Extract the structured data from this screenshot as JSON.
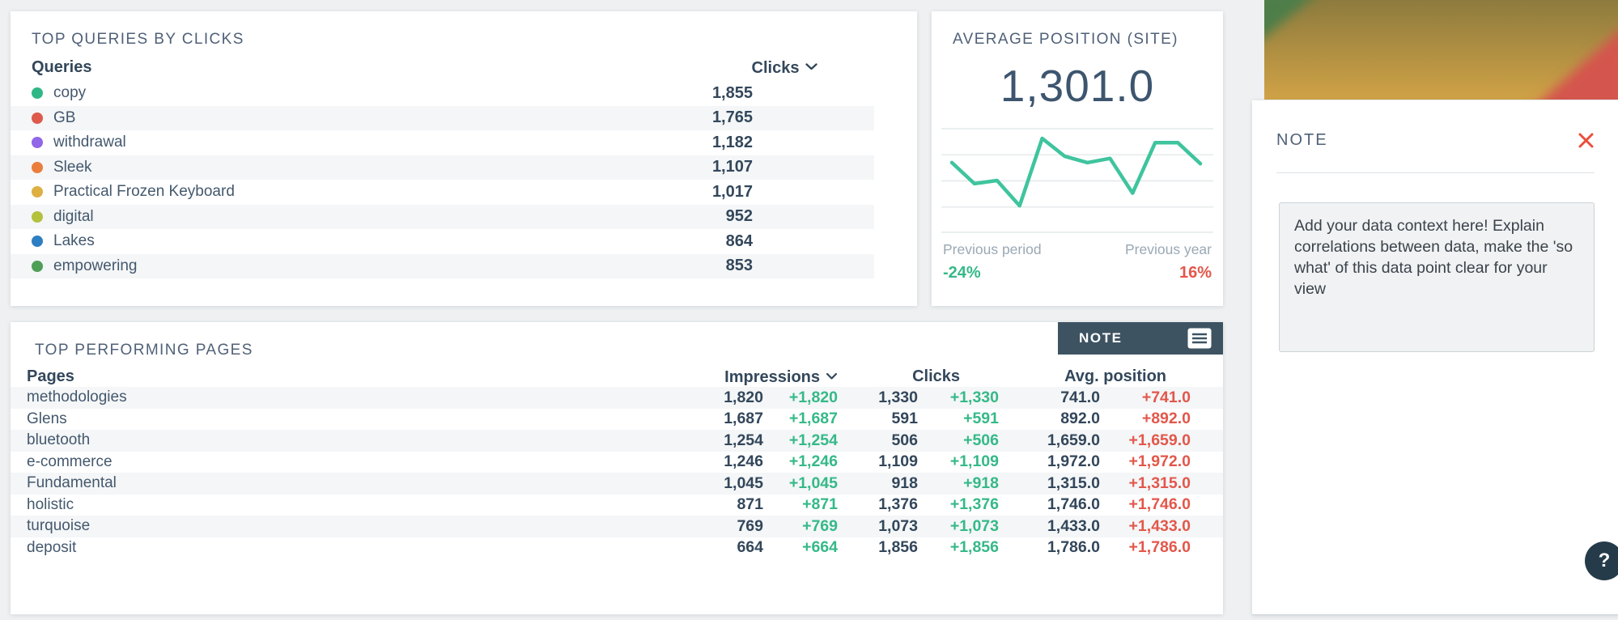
{
  "colors": {
    "page-bg": "#eef0f1",
    "slate": "#33475b",
    "title": "#506178",
    "label": "#44586d",
    "muted": "#9aa8b4",
    "green": "#35b988",
    "red": "#e3574b",
    "bar": "#3dbd95",
    "spark": "#3fc49e",
    "grid": "#e4e8ea",
    "stripe": "#f4f6f7",
    "note-btn-bg": "#3d5362",
    "help-bg": "#253b49",
    "divider": "#dde2e6",
    "textarea-bg": "#f0f2f3",
    "textarea-border": "#ccd3d9",
    "banner-gold-1": "#8d7b3e",
    "banner-gold-2": "#d0a246",
    "banner-green": "#4e7e4a",
    "banner-red": "#d4544d"
  },
  "queries_panel": {
    "title": "TOP QUERIES BY CLICKS",
    "column_label": "Queries",
    "value_column_label": "Clicks",
    "max_value": 1855,
    "rows": [
      {
        "label": "copy",
        "dot_color": "#2fb886",
        "clicks": "1,855",
        "value": 1855
      },
      {
        "label": "GB",
        "dot_color": "#dd5a4d",
        "clicks": "1,765",
        "value": 1765
      },
      {
        "label": "withdrawal",
        "dot_color": "#9166e8",
        "clicks": "1,182",
        "value": 1182
      },
      {
        "label": "Sleek",
        "dot_color": "#ea7e3d",
        "clicks": "1,107",
        "value": 1107
      },
      {
        "label": "Practical Frozen Keyboard",
        "dot_color": "#ddb041",
        "clicks": "1,017",
        "value": 1017
      },
      {
        "label": "digital",
        "dot_color": "#b3c13d",
        "clicks": "952",
        "value": 952
      },
      {
        "label": "Lakes",
        "dot_color": "#2e7fc2",
        "clicks": "864",
        "value": 864
      },
      {
        "label": "empowering",
        "dot_color": "#4e9e58",
        "clicks": "853",
        "value": 853
      }
    ]
  },
  "avg_position_panel": {
    "title": "AVERAGE POSITION (SITE)",
    "value": "1,301.0",
    "previous_period_label": "Previous period",
    "previous_period_value": "-24%",
    "previous_year_label": "Previous year",
    "previous_year_value": "16%",
    "sparkline": [
      67,
      47,
      50,
      26,
      90,
      73,
      67,
      71,
      38,
      86,
      86,
      66
    ]
  },
  "pages_panel": {
    "title": "TOP PERFORMING PAGES",
    "note_button_label": "NOTE",
    "columns": {
      "pages": "Pages",
      "impressions": "Impressions",
      "clicks": "Clicks",
      "avg_position": "Avg. position"
    },
    "rows": [
      {
        "page": "methodologies",
        "impressions": "1,820",
        "impressions_delta": "+1,820",
        "clicks": "1,330",
        "clicks_delta": "+1,330",
        "avg_position": "741.0",
        "avg_position_delta": "+741.0"
      },
      {
        "page": "Glens",
        "impressions": "1,687",
        "impressions_delta": "+1,687",
        "clicks": "591",
        "clicks_delta": "+591",
        "avg_position": "892.0",
        "avg_position_delta": "+892.0"
      },
      {
        "page": "bluetooth",
        "impressions": "1,254",
        "impressions_delta": "+1,254",
        "clicks": "506",
        "clicks_delta": "+506",
        "avg_position": "1,659.0",
        "avg_position_delta": "+1,659.0"
      },
      {
        "page": "e-commerce",
        "impressions": "1,246",
        "impressions_delta": "+1,246",
        "clicks": "1,109",
        "clicks_delta": "+1,109",
        "avg_position": "1,972.0",
        "avg_position_delta": "+1,972.0"
      },
      {
        "page": "Fundamental",
        "impressions": "1,045",
        "impressions_delta": "+1,045",
        "clicks": "918",
        "clicks_delta": "+918",
        "avg_position": "1,315.0",
        "avg_position_delta": "+1,315.0"
      },
      {
        "page": "holistic",
        "impressions": "871",
        "impressions_delta": "+871",
        "clicks": "1,376",
        "clicks_delta": "+1,376",
        "avg_position": "1,746.0",
        "avg_position_delta": "+1,746.0"
      },
      {
        "page": "turquoise",
        "impressions": "769",
        "impressions_delta": "+769",
        "clicks": "1,073",
        "clicks_delta": "+1,073",
        "avg_position": "1,433.0",
        "avg_position_delta": "+1,433.0"
      },
      {
        "page": "deposit",
        "impressions": "664",
        "impressions_delta": "+664",
        "clicks": "1,856",
        "clicks_delta": "+1,856",
        "avg_position": "1,786.0",
        "avg_position_delta": "+1,786.0"
      }
    ]
  },
  "note_panel": {
    "title": "NOTE",
    "body": "Add your data context here! Explain correlations between data, make the 'so what' of this data point clear for your view"
  },
  "help_button": {
    "label": "?"
  },
  "chart_data": [
    {
      "type": "bar",
      "title": "TOP QUERIES BY CLICKS",
      "orientation": "horizontal",
      "categories": [
        "copy",
        "GB",
        "withdrawal",
        "Sleek",
        "Practical Frozen Keyboard",
        "digital",
        "Lakes",
        "empowering"
      ],
      "values": [
        1855,
        1765,
        1182,
        1107,
        1017,
        952,
        864,
        853
      ],
      "xlabel": "Clicks",
      "ylabel": "Queries",
      "xlim": [
        0,
        1855
      ],
      "grid": false
    },
    {
      "type": "line",
      "title": "AVERAGE POSITION (SITE)",
      "current_value": 1301.0,
      "x": [
        1,
        2,
        3,
        4,
        5,
        6,
        7,
        8,
        9,
        10,
        11,
        12
      ],
      "values": [
        67,
        47,
        50,
        26,
        90,
        73,
        67,
        71,
        38,
        86,
        86,
        66
      ],
      "ylim": [
        0,
        100
      ],
      "grid": true,
      "legend": false,
      "annotations": [
        "Previous period -24%",
        "Previous year 16%"
      ]
    },
    {
      "type": "table",
      "title": "TOP PERFORMING PAGES",
      "columns": [
        "Pages",
        "Impressions",
        "Impressions Δ",
        "Clicks",
        "Clicks Δ",
        "Avg. position",
        "Avg. position Δ"
      ],
      "rows": [
        [
          "methodologies",
          1820,
          "+1,820",
          1330,
          "+1,330",
          741.0,
          "+741.0"
        ],
        [
          "Glens",
          1687,
          "+1,687",
          591,
          "+591",
          892.0,
          "+892.0"
        ],
        [
          "bluetooth",
          1254,
          "+1,254",
          506,
          "+506",
          1659.0,
          "+1,659.0"
        ],
        [
          "e-commerce",
          1246,
          "+1,246",
          1109,
          "+1,109",
          1972.0,
          "+1,972.0"
        ],
        [
          "Fundamental",
          1045,
          "+1,045",
          918,
          "+918",
          1315.0,
          "+1,315.0"
        ],
        [
          "holistic",
          871,
          "+871",
          1376,
          "+1,376",
          1746.0,
          "+1,746.0"
        ],
        [
          "turquoise",
          769,
          "+769",
          1073,
          "+1,073",
          1433.0,
          "+1,433.0"
        ],
        [
          "deposit",
          664,
          "+664",
          1856,
          "+1,856",
          1786.0,
          "+1,786.0"
        ]
      ]
    }
  ]
}
